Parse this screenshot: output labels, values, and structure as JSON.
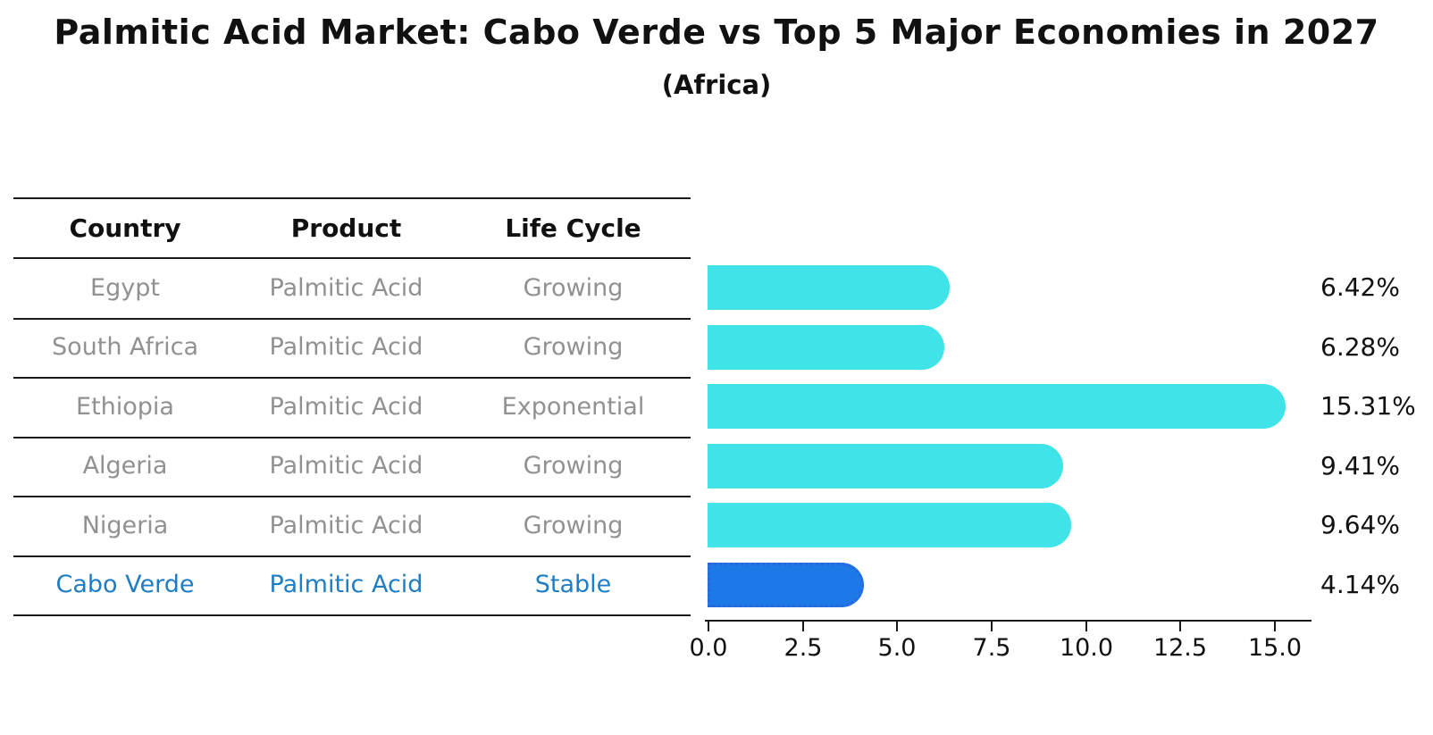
{
  "title": "Palmitic Acid Market: Cabo Verde vs Top 5 Major Economies in 2027",
  "subtitle": "(Africa)",
  "table": {
    "headers": [
      "Country",
      "Product",
      "Life Cycle"
    ],
    "rows": [
      {
        "country": "Egypt",
        "product": "Palmitic Acid",
        "life_cycle": "Growing"
      },
      {
        "country": "South Africa",
        "product": "Palmitic Acid",
        "life_cycle": "Growing"
      },
      {
        "country": "Ethiopia",
        "product": "Palmitic Acid",
        "life_cycle": "Exponential"
      },
      {
        "country": "Algeria",
        "product": "Palmitic Acid",
        "life_cycle": "Growing"
      },
      {
        "country": "Nigeria",
        "product": "Palmitic Acid",
        "life_cycle": "Growing"
      },
      {
        "country": "Cabo Verde",
        "product": "Palmitic Acid",
        "life_cycle": "Stable"
      }
    ],
    "highlight_row_index": 5,
    "text_color": "#919191",
    "highlight_text_color": "#1f7dc4"
  },
  "chart_data": {
    "type": "bar",
    "orientation": "horizontal",
    "title": "Palmitic Acid Market: Cabo Verde vs Top 5 Major Economies in 2027",
    "subtitle": "(Africa)",
    "categories": [
      "Egypt",
      "South Africa",
      "Ethiopia",
      "Algeria",
      "Nigeria",
      "Cabo Verde"
    ],
    "values": [
      6.42,
      6.28,
      15.31,
      9.41,
      9.64,
      4.14
    ],
    "value_labels": [
      "6.42%",
      "6.28%",
      "15.31%",
      "9.41%",
      "9.64%",
      "4.14%"
    ],
    "xlabel": "",
    "ylabel": "",
    "xlim": [
      0,
      16
    ],
    "xticks": [
      0.0,
      2.5,
      5.0,
      7.5,
      10.0,
      12.5,
      15.0
    ],
    "xtick_labels": [
      "0.0",
      "2.5",
      "5.0",
      "7.5",
      "10.0",
      "12.5",
      "15.0"
    ],
    "grid": false,
    "legend": false,
    "bar_color": "#40e3e8",
    "highlight_color": "#1d78e8",
    "highlight_border_color": "#2b66d9",
    "highlight_index": 5
  }
}
